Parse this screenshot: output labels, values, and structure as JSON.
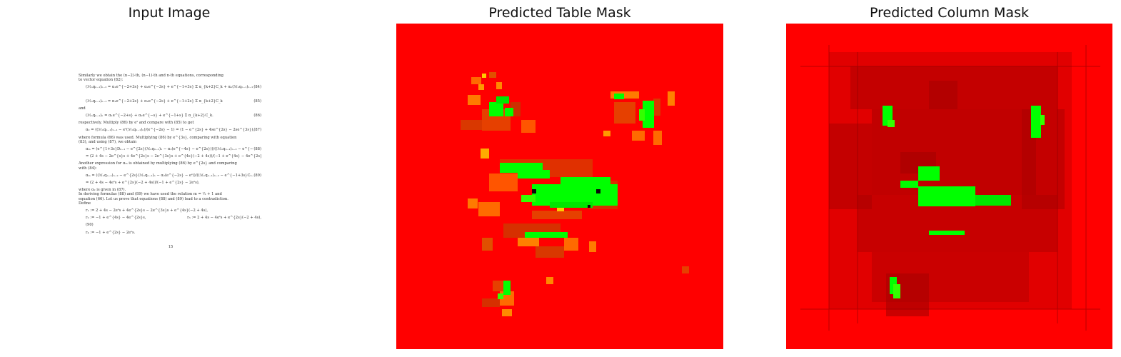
{
  "figure": {
    "panels": [
      {
        "title": "Input Image"
      },
      {
        "title": "Predicted Table Mask"
      },
      {
        "title": "Predicted Column Mask"
      }
    ]
  },
  "document": {
    "lines": [
      "Similarly we obtain the (n−2)-th, (n−1)-th and n-th equations, corresponding",
      "to vector equation (82):",
      "(ℳₙqₙ₋₁)ₙ₋₂ = α₁e^{−2+3s} + α₂e^{−3s} + e^{−1+3s} Σ α_{k+2}C_k + αₙ(ℳₙqₙ₋₁)ₙ₋₂,",
      "(84)",
      "(ℳₙqₙ₋₁)ₙ₋₁ = α₁e^{−2+2s} + α₂e^{−2s} + e^{−1+2s} Σ α_{k+2}C_k",
      "(85)",
      "and",
      "(ℳₙqₙ₋₁)ₙ = α₁e^{−2+s} + α₂e^{−s} + e^{−1+s} Σ α_{k+2}C_k.",
      "(86)",
      "respectively. Multiply (86) by eˢ and compare with (85) to get",
      "α₂ = ((ℳₙqₙ₋₁)ₙ₋₁ − eˢ(ℳₙqₙ₋₁)ₙ)/(e^{−2s} − 1) = (1 − e^{2s} + 4se^{2s} − 2se^{3s})/(2s(1 − e^{2s})),",
      "(87)",
      "where formula (66) was used. Multiplying (86) by e^{3s}, comparing with equation",
      "(83), and using (87), we obtain",
      "αₘ = (e^{1+3s}Dₙ₋₁ − e^{2s}(ℳₙqₙ₋₁)ₙ − α₂(e^{−4s} − e^{2s}))/((ℳₙqₙ₋₁)ₙ₋₂ − e^{−1+3s}Cₙ₋₂)",
      "(88)",
      "= (2 + 4s − 2e^{s}s + 4e^{2s}s − 2e^{3s}s + e^{4s}(−2 + 4s))/(−1 + e^{4s} − 4e^{2s}s)",
      "Another expression for αₘ is obtained by multiplying (86) by e^{2s} and comparing",
      "with (84):",
      "αₘ = ((ℳₙqₙ₋₁)ₙ₋₂ − e^{2s}(ℳₙqₙ₋₁)ₙ − α₂(e^{−2s} − eˢ))/((ℳₙqₙ₋₁)ₙ₋₂ − e^{−1+3s}Cₙ₋₂)",
      "(89)",
      "= (2 + 4s − 4eˢs + e^{2s}(−2 + 4s))/(−1 + e^{2s} − 2eˢs),",
      "where α₂ is given in (87).",
      "In deriving formulas (88) and (89) we have used the relation m = ½ + 1 and",
      "equation (66). Let us prove that equations (88) and (89) lead to a contradiction.",
      "Define",
      "r₁ := 2 + 4s − 2eˢs + 4e^{2s}s − 2e^{3s}s + e^{4s}(−2 + 4s),",
      "r₂ := −1 + e^{4s} − 4e^{2s}s,",
      "(90)",
      "r₃ := 2 + 4s − 4eˢs + e^{2s}(−2 + 4s),",
      "r₄ := −1 + e^{2s} − 2eˢs.",
      "15"
    ]
  },
  "colors": {
    "background": "#ff0000",
    "positive": "#00ff00",
    "dark": "#8b0000",
    "orange": "#ff6000"
  }
}
